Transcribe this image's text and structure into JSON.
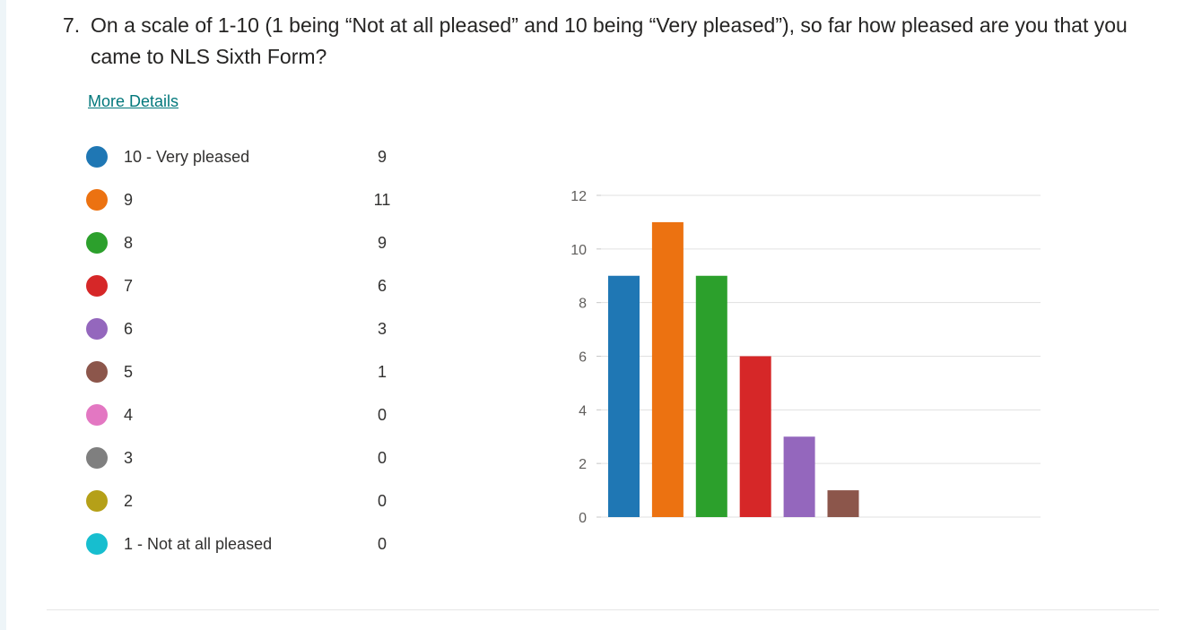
{
  "question": {
    "number": "7.",
    "text": "On a scale of 1-10 (1 being “Not at all pleased” and 10 being “Very pleased”), so far how pleased are you that you came to NLS Sixth Form?"
  },
  "more_details_label": "More Details",
  "legend": [
    {
      "label": "10 - Very pleased",
      "count": "9",
      "color": "#1f77b4"
    },
    {
      "label": "9",
      "count": "11",
      "color": "#ec7211"
    },
    {
      "label": "8",
      "count": "9",
      "color": "#2ca02c"
    },
    {
      "label": "7",
      "count": "6",
      "color": "#d62728"
    },
    {
      "label": "6",
      "count": "3",
      "color": "#9467bd"
    },
    {
      "label": "5",
      "count": "1",
      "color": "#8c564b"
    },
    {
      "label": "4",
      "count": "0",
      "color": "#e377c2"
    },
    {
      "label": "3",
      "count": "0",
      "color": "#7f7f7f"
    },
    {
      "label": "2",
      "count": "0",
      "color": "#b5a018"
    },
    {
      "label": "1 - Not at all pleased",
      "count": "0",
      "color": "#17becf"
    }
  ],
  "chart_data": {
    "type": "bar",
    "categories": [
      "10 - Very pleased",
      "9",
      "8",
      "7",
      "6",
      "5",
      "4",
      "3",
      "2",
      "1 - Not at all pleased"
    ],
    "values": [
      9,
      11,
      9,
      6,
      3,
      1,
      0,
      0,
      0,
      0
    ],
    "colors": [
      "#1f77b4",
      "#ec7211",
      "#2ca02c",
      "#d62728",
      "#9467bd",
      "#8c564b",
      "#e377c2",
      "#7f7f7f",
      "#b5a018",
      "#17becf"
    ],
    "ylim": [
      0,
      12
    ],
    "yticks": [
      "0",
      "2",
      "4",
      "6",
      "8",
      "10",
      "12"
    ],
    "grid": true,
    "legend_position": "left"
  }
}
